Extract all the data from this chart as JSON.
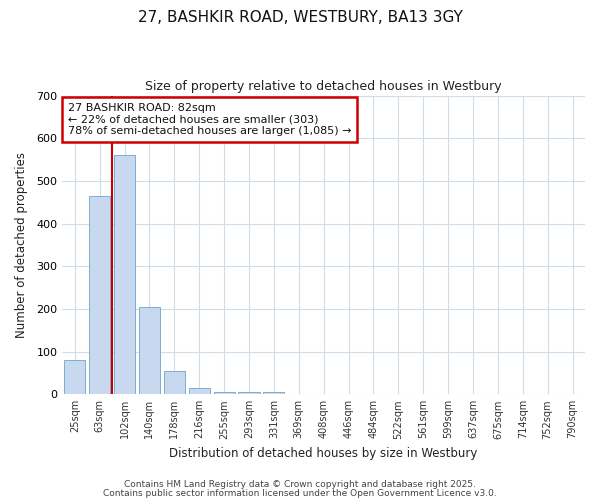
{
  "title_line1": "27, BASHKIR ROAD, WESTBURY, BA13 3GY",
  "title_line2": "Size of property relative to detached houses in Westbury",
  "xlabel": "Distribution of detached houses by size in Westbury",
  "ylabel": "Number of detached properties",
  "categories": [
    "25sqm",
    "63sqm",
    "102sqm",
    "140sqm",
    "178sqm",
    "216sqm",
    "255sqm",
    "293sqm",
    "331sqm",
    "369sqm",
    "408sqm",
    "446sqm",
    "484sqm",
    "522sqm",
    "561sqm",
    "599sqm",
    "637sqm",
    "675sqm",
    "714sqm",
    "752sqm",
    "790sqm"
  ],
  "bar_values": [
    80,
    465,
    560,
    205,
    55,
    15,
    5,
    5,
    5,
    0,
    0,
    0,
    0,
    0,
    0,
    0,
    0,
    0,
    0,
    0,
    0
  ],
  "bar_color": "#c8d8ee",
  "bar_edge_color": "#7bafd4",
  "red_line_x": 1.5,
  "annotation_title": "27 BASHKIR ROAD: 82sqm",
  "annotation_line2": "← 22% of detached houses are smaller (303)",
  "annotation_line3": "78% of semi-detached houses are larger (1,085) →",
  "annotation_box_color": "#ffffff",
  "annotation_box_edge": "#cc0000",
  "ylim": [
    0,
    700
  ],
  "yticks": [
    0,
    100,
    200,
    300,
    400,
    500,
    600,
    700
  ],
  "footer_line1": "Contains HM Land Registry data © Crown copyright and database right 2025.",
  "footer_line2": "Contains public sector information licensed under the Open Government Licence v3.0.",
  "bg_color": "#ffffff",
  "plot_bg_color": "#ffffff",
  "grid_color": "#d0dce8"
}
